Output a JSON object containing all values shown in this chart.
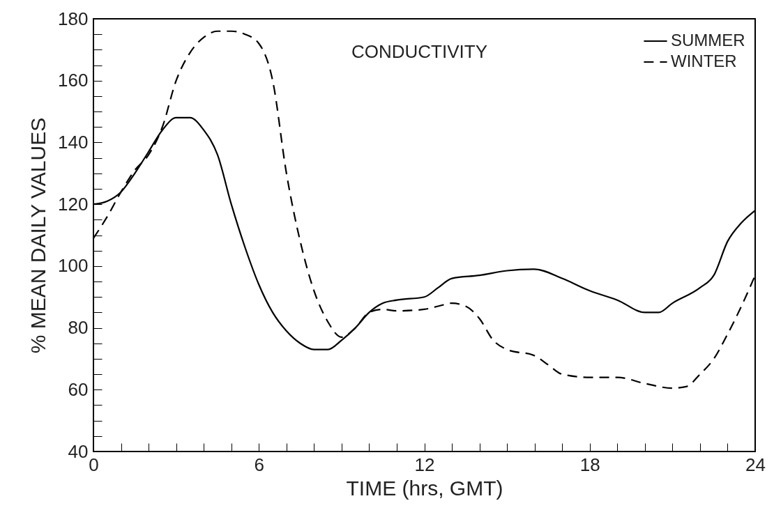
{
  "chart_data": {
    "type": "line",
    "xlabel": "TIME (hrs, GMT)",
    "ylabel": "% MEAN DAILY VALUES",
    "annotations": [
      "CONDUCTIVITY"
    ],
    "xlim": [
      0,
      24
    ],
    "ylim": [
      40,
      180
    ],
    "xticks": [
      0,
      {
        "value": 1,
        "label": null
      },
      {
        "value": 2,
        "label": null
      },
      {
        "value": 3,
        "label": null
      },
      {
        "value": 4,
        "label": null
      },
      {
        "value": 5,
        "label": null
      },
      6,
      {
        "value": 7,
        "label": null
      },
      {
        "value": 8,
        "label": null
      },
      {
        "value": 9,
        "label": null
      },
      {
        "value": 10,
        "label": null
      },
      {
        "value": 11,
        "label": null
      },
      12,
      {
        "value": 13,
        "label": null
      },
      {
        "value": 14,
        "label": null
      },
      {
        "value": 15,
        "label": null
      },
      {
        "value": 16,
        "label": null
      },
      {
        "value": 17,
        "label": null
      },
      18,
      {
        "value": 19,
        "label": null
      },
      {
        "value": 20,
        "label": null
      },
      {
        "value": 21,
        "label": null
      },
      {
        "value": 22,
        "label": null
      },
      {
        "value": 23,
        "label": null
      },
      24
    ],
    "yticks": [
      40,
      {
        "value": 45,
        "label": null
      },
      {
        "value": 50,
        "label": null
      },
      {
        "value": 55,
        "label": null
      },
      60,
      {
        "value": 65,
        "label": null
      },
      {
        "value": 70,
        "label": null
      },
      {
        "value": 75,
        "label": null
      },
      80,
      {
        "value": 85,
        "label": null
      },
      {
        "value": 90,
        "label": null
      },
      {
        "value": 95,
        "label": null
      },
      100,
      {
        "value": 105,
        "label": null
      },
      {
        "value": 110,
        "label": null
      },
      {
        "value": 115,
        "label": null
      },
      120,
      {
        "value": 125,
        "label": null
      },
      {
        "value": 130,
        "label": null
      },
      {
        "value": 135,
        "label": null
      },
      140,
      {
        "value": 145,
        "label": null
      },
      {
        "value": 150,
        "label": null
      },
      {
        "value": 155,
        "label": null
      },
      160,
      {
        "value": 165,
        "label": null
      },
      {
        "value": 170,
        "label": null
      },
      {
        "value": 175,
        "label": null
      },
      180
    ],
    "legend": "top right",
    "grid": false,
    "marker": "none",
    "series": [
      {
        "name": "SUMMER",
        "color": "#000000",
        "line_style": "solid",
        "x": [
          0,
          0.5,
          1,
          1.5,
          2,
          2.5,
          3,
          3.5,
          4,
          4.5,
          5,
          5.5,
          6,
          6.5,
          7,
          7.5,
          8,
          8.5,
          9,
          9.5,
          10,
          10.5,
          11,
          12,
          12.5,
          13,
          14,
          15,
          16,
          17,
          18,
          19,
          20,
          20.5,
          21,
          22,
          22.5,
          23,
          23.5,
          24
        ],
        "values": [
          120,
          121,
          124,
          130,
          137,
          144,
          148,
          148,
          144,
          136,
          120,
          106,
          94,
          85,
          79,
          75,
          73,
          73,
          76,
          80,
          85,
          88,
          89,
          90,
          93,
          96,
          97,
          98.5,
          99,
          96,
          92,
          89,
          85,
          85,
          88,
          93,
          97,
          108,
          114,
          118
        ]
      },
      {
        "name": "WINTER",
        "color": "#000000",
        "line_style": "dashed",
        "x": [
          0,
          0.5,
          1,
          1.5,
          2,
          2.5,
          3,
          3.5,
          4,
          4.5,
          5,
          5.5,
          6,
          6.5,
          7,
          7.5,
          8,
          8.5,
          9,
          9.5,
          10,
          10.5,
          11,
          12,
          12.5,
          13,
          13.5,
          14,
          14.5,
          15,
          16,
          16.5,
          17,
          18,
          19,
          20,
          21,
          21.5,
          22,
          22.5,
          23,
          23.5,
          24
        ],
        "values": [
          109,
          116,
          124,
          131,
          136,
          145,
          160,
          169,
          174,
          176,
          176,
          175,
          172,
          160,
          130,
          108,
          92,
          82,
          77,
          80,
          85,
          86,
          85.5,
          86,
          87,
          88,
          87,
          83,
          76,
          73,
          71,
          68,
          65,
          64,
          64,
          62,
          60.5,
          61,
          65,
          70,
          78,
          87,
          97
        ]
      }
    ]
  }
}
